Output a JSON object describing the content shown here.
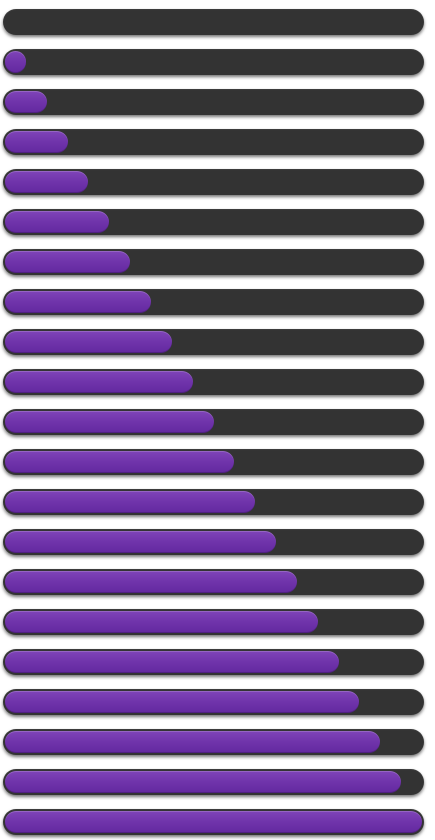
{
  "colors": {
    "track": "#333333",
    "fill": "#7135ac"
  },
  "progress_bars": [
    {
      "value": 0.0
    },
    {
      "value": 0.05
    },
    {
      "value": 0.1
    },
    {
      "value": 0.15
    },
    {
      "value": 0.2
    },
    {
      "value": 0.25
    },
    {
      "value": 0.3
    },
    {
      "value": 0.35
    },
    {
      "value": 0.4
    },
    {
      "value": 0.45
    },
    {
      "value": 0.5
    },
    {
      "value": 0.55
    },
    {
      "value": 0.6
    },
    {
      "value": 0.65
    },
    {
      "value": 0.7
    },
    {
      "value": 0.75
    },
    {
      "value": 0.8
    },
    {
      "value": 0.85
    },
    {
      "value": 0.9
    },
    {
      "value": 0.95
    },
    {
      "value": 1.0
    }
  ]
}
